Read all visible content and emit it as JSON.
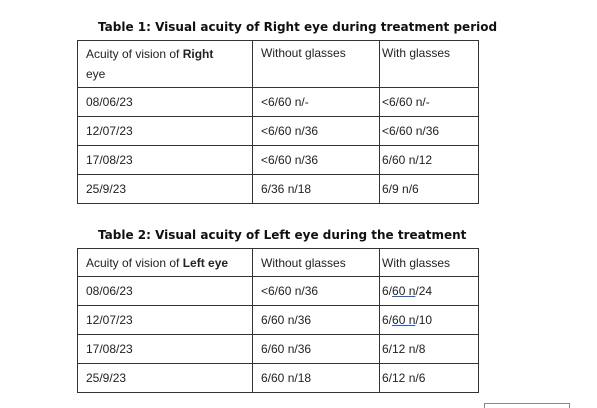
{
  "table1": {
    "caption": "Table 1: Visual acuity of Right eye during treatment period",
    "header": {
      "col1_prefix": "Acuity of vision of",
      "col1_bold": "Right",
      "col1_suffix": "eye",
      "col2": "Without glasses",
      "col3": "With glasses"
    },
    "rows": [
      {
        "date": "08/06/23",
        "without": "<6/60 n/-",
        "with": "<6/60 n/-"
      },
      {
        "date": "12/07/23",
        "without": "<6/60 n/36",
        "with": "<6/60 n/36"
      },
      {
        "date": "17/08/23",
        "without": "<6/60 n/36",
        "with": "6/60 n/12"
      },
      {
        "date": "25/9/23",
        "without": "6/36 n/18",
        "with": "6/9 n/6"
      }
    ]
  },
  "table2": {
    "caption": "Table 2: Visual acuity of Left eye during the treatment",
    "header": {
      "col1_prefix": "Acuity of vision of",
      "col1_bold": "Left eye",
      "col2": "Without glasses",
      "col3": "With glasses"
    },
    "rows": [
      {
        "date": "08/06/23",
        "without": "<6/60 n/36",
        "with_a": "6/",
        "with_b": "60 n",
        "with_c": "/24"
      },
      {
        "date": "12/07/23",
        "without": "6/60 n/36",
        "with_a": "6/",
        "with_b": "60 n",
        "with_c": "/10"
      },
      {
        "date": "17/08/23",
        "without": "6/60 n/36",
        "with_a": "6/12 n/8",
        "with_b": "",
        "with_c": ""
      },
      {
        "date": "25/9/23",
        "without": "6/60 n/18",
        "with_a": "6/12 n/6",
        "with_b": "",
        "with_c": ""
      }
    ]
  }
}
